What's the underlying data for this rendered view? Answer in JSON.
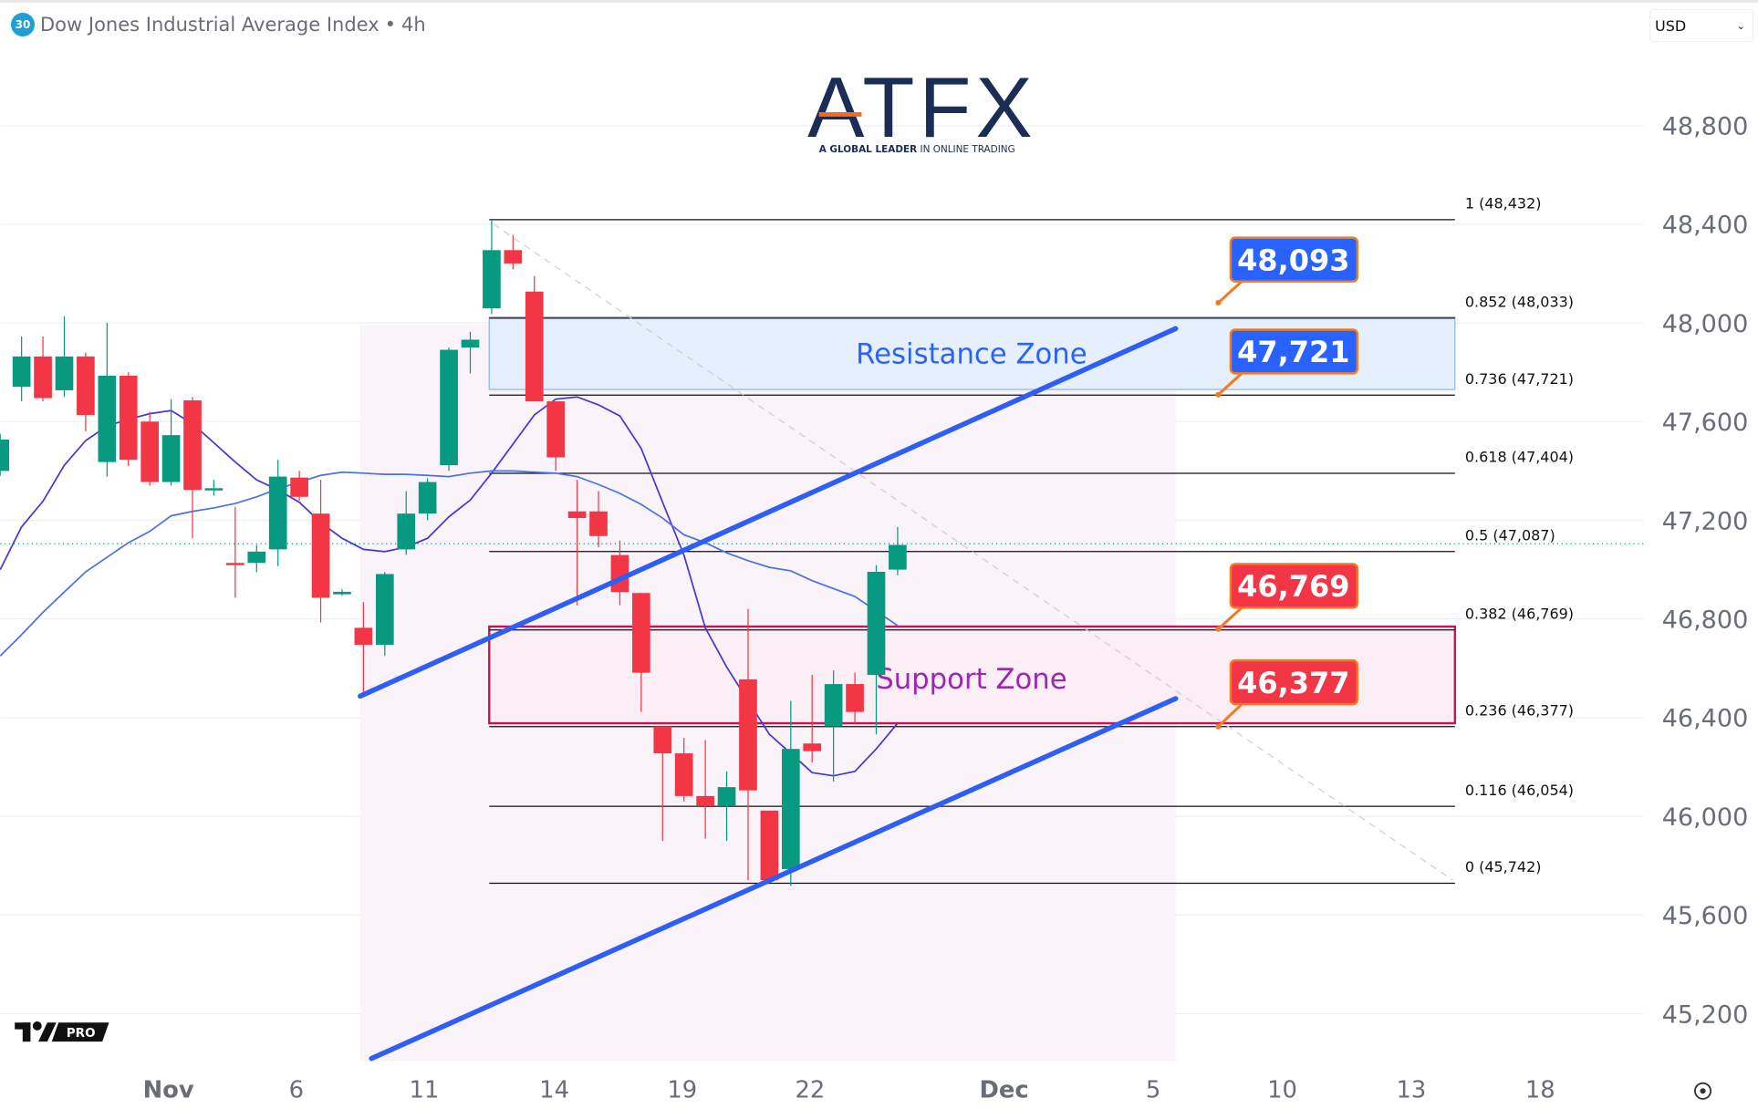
{
  "header": {
    "symbol_badge": "30",
    "title": "Dow Jones Industrial Average Index",
    "separator": "•",
    "interval": "4h",
    "currency": "USD"
  },
  "logo": {
    "brand": "ATFX",
    "tagline_bold": "A GLOBAL LEADER",
    "tagline": "IN ONLINE TRADING"
  },
  "watermark": {
    "text": "PRO"
  },
  "colors": {
    "up": "#089981",
    "down": "#f23645",
    "channel": "#2f5ef5",
    "ma_fast": "#4636d2",
    "ma_slow": "#4a72e6",
    "resistance_fill": "#e6effd",
    "support_fill": "#fbeef4",
    "support_border": "#c2185b",
    "label_blue": "#2962ff",
    "label_red": "#f23645",
    "label_border": "#f07c22"
  },
  "chart_data": {
    "type": "candlestick",
    "title": "Dow Jones Industrial Average Index • 4h",
    "y_axis": {
      "ticks": [
        "48,800",
        "48,400",
        "48,000",
        "47,600",
        "47,200",
        "46,800",
        "46,400",
        "46,000",
        "45,600",
        "45,200"
      ],
      "tick_values": [
        48800,
        48400,
        48000,
        47600,
        47200,
        46800,
        46400,
        46000,
        45600,
        45200
      ],
      "position": "right"
    },
    "x_axis": {
      "ticks": [
        "Nov",
        "6",
        "11",
        "14",
        "19",
        "22",
        "Dec",
        "5",
        "10",
        "13",
        "18"
      ]
    },
    "grid": true,
    "candles": [
      [
        47400,
        47550,
        47380,
        47527
      ],
      [
        47741,
        47945,
        47682,
        47864
      ],
      [
        47864,
        47945,
        47682,
        47695
      ],
      [
        47727,
        48027,
        47700,
        47864
      ],
      [
        47864,
        47880,
        47560,
        47627
      ],
      [
        47436,
        48000,
        47377,
        47786
      ],
      [
        47786,
        47800,
        47420,
        47445
      ],
      [
        47600,
        47640,
        47340,
        47355
      ],
      [
        47355,
        47691,
        47340,
        47545
      ],
      [
        47686,
        47700,
        47127,
        47323
      ],
      [
        47323,
        47364,
        47300,
        47330
      ],
      [
        47027,
        47255,
        46886,
        47023
      ],
      [
        47027,
        47100,
        46990,
        47073
      ],
      [
        47082,
        47445,
        47014,
        47377
      ],
      [
        47373,
        47400,
        47280,
        47295
      ],
      [
        47227,
        47364,
        46786,
        46886
      ],
      [
        46900,
        46920,
        46895,
        46910
      ],
      [
        46764,
        46868,
        46491,
        46695
      ],
      [
        46695,
        46990,
        46650,
        46982
      ],
      [
        47082,
        47318,
        47060,
        47227
      ],
      [
        47227,
        47370,
        47200,
        47355
      ],
      [
        47423,
        47900,
        47400,
        47891
      ],
      [
        47900,
        47964,
        47795,
        47932
      ],
      [
        48059,
        48418,
        48036,
        48295
      ],
      [
        48295,
        48355,
        48218,
        48241
      ],
      [
        48127,
        48190,
        47682,
        47682
      ],
      [
        47682,
        47682,
        47400,
        47455
      ],
      [
        47236,
        47364,
        46855,
        47209
      ],
      [
        47236,
        47318,
        47091,
        47136
      ],
      [
        47059,
        47118,
        46855,
        46909
      ],
      [
        46905,
        46905,
        46423,
        46582
      ],
      [
        46364,
        46364,
        45900,
        46255
      ],
      [
        46255,
        46318,
        46060,
        46082
      ],
      [
        46082,
        46309,
        45909,
        46041
      ],
      [
        46041,
        46182,
        45900,
        46118
      ],
      [
        46555,
        46841,
        45741,
        46105
      ],
      [
        46023,
        46023,
        45741,
        45741
      ],
      [
        45786,
        46468,
        45718,
        46273
      ],
      [
        46295,
        46573,
        46218,
        46264
      ],
      [
        46364,
        46591,
        46141,
        46536
      ],
      [
        46536,
        46582,
        46377,
        46423
      ],
      [
        46573,
        47018,
        46332,
        46991
      ],
      [
        47000,
        47173,
        46977,
        47100
      ]
    ],
    "ma_fast": [
      47000,
      47173,
      47277,
      47423,
      47523,
      47582,
      47609,
      47632,
      47645,
      47591,
      47514,
      47436,
      47364,
      47323,
      47273,
      47191,
      47127,
      47082,
      47073,
      47091,
      47127,
      47214,
      47282,
      47391,
      47509,
      47627,
      47691,
      47700,
      47668,
      47623,
      47491,
      47273,
      47059,
      46764,
      46605,
      46468,
      46332,
      46255,
      46177,
      46164,
      46182,
      46273,
      46377
    ],
    "ma_slow": [
      46650,
      46736,
      46827,
      46909,
      46991,
      47050,
      47109,
      47155,
      47218,
      47236,
      47250,
      47268,
      47295,
      47327,
      47355,
      47382,
      47395,
      47391,
      47386,
      47386,
      47382,
      47377,
      47391,
      47400,
      47400,
      47395,
      47391,
      47377,
      47345,
      47309,
      47264,
      47209,
      47141,
      47109,
      47068,
      47036,
      47009,
      46995,
      46955,
      46923,
      46891,
      46832,
      46773
    ],
    "last_price": 47100,
    "fibonacci": [
      {
        "ratio": "1",
        "price": 48432,
        "label": "1 (48,432)"
      },
      {
        "ratio": "0.852",
        "price": 48033,
        "label": "0.852 (48,033)"
      },
      {
        "ratio": "0.736",
        "price": 47721,
        "label": "0.736 (47,721)"
      },
      {
        "ratio": "0.618",
        "price": 47404,
        "label": "0.618 (47,404)"
      },
      {
        "ratio": "0.5",
        "price": 47087,
        "label": "0.5 (47,087)"
      },
      {
        "ratio": "0.382",
        "price": 46769,
        "label": "0.382 (46,769)"
      },
      {
        "ratio": "0.236",
        "price": 46377,
        "label": "0.236 (46,377)"
      },
      {
        "ratio": "0.116",
        "price": 46054,
        "label": "0.116 (46,054)"
      },
      {
        "ratio": "0",
        "price": 45742,
        "label": "0 (45,742)"
      }
    ],
    "zones": [
      {
        "name": "Resistance Zone",
        "low": 47721,
        "high": 48033,
        "color": "#2962ff"
      },
      {
        "name": "Support Zone",
        "low": 46377,
        "high": 46769,
        "color": "#9c27b0"
      }
    ],
    "channel": {
      "upper": [
        46487,
        47977
      ],
      "lower": [
        45018,
        46477
      ]
    },
    "price_labels": [
      {
        "text": "48,093",
        "price": 48093,
        "color": "blue"
      },
      {
        "text": "47,721",
        "price": 47721,
        "color": "blue"
      },
      {
        "text": "46,769",
        "price": 46769,
        "color": "red"
      },
      {
        "text": "46,377",
        "price": 46377,
        "color": "red"
      }
    ]
  }
}
